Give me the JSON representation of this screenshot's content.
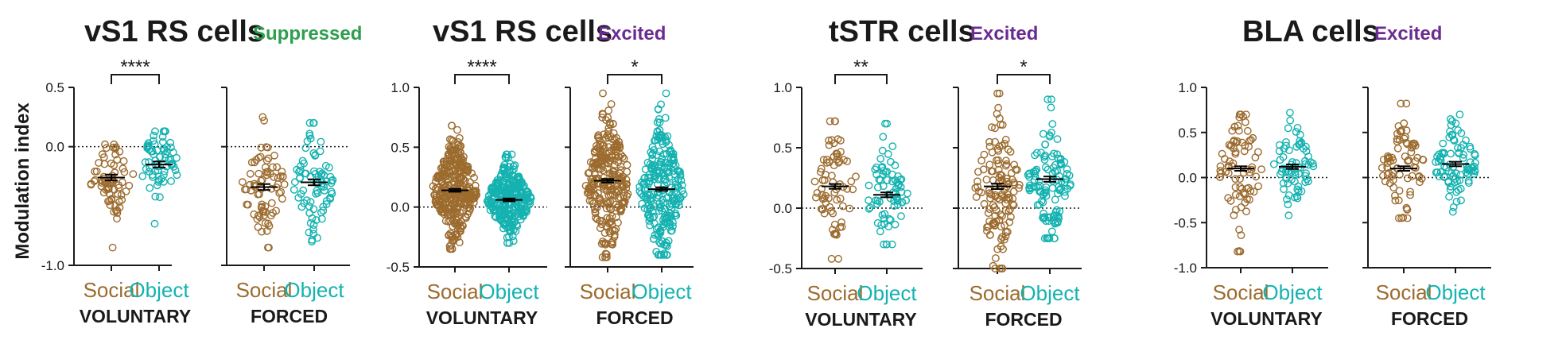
{
  "y_axis_label": "Modulation index",
  "colors": {
    "social": "#9C6B2E",
    "object": "#14B2B0",
    "suppressed": "#2E9E4F",
    "excited": "#6A2C91"
  },
  "chart_data": [
    {
      "title": "vS1 RS cells",
      "status": "Suppressed",
      "status_color": "suppressed",
      "type": "scatter",
      "panels": [
        {
          "condition": "VOLUNTARY",
          "ylim": [
            -1.0,
            0.5
          ],
          "yticks": [
            0.5,
            0.0,
            -1.0
          ],
          "ytick_labels": [
            "0.5",
            "0.0",
            "-1.0"
          ],
          "categories": [
            "Social",
            "Object"
          ],
          "means": [
            -0.26,
            -0.15
          ],
          "sem": 0.025,
          "n": [
            70,
            65
          ],
          "spread": [
            [
              -0.85,
              0.02
            ],
            [
              -0.65,
              0.13
            ]
          ],
          "significance": "****"
        },
        {
          "condition": "FORCED",
          "ylim": [
            -1.0,
            0.5
          ],
          "yticks": [
            0.5,
            0.0,
            -1.0
          ],
          "ytick_labels": [
            "",
            "",
            ""
          ],
          "categories": [
            "Social",
            "Object"
          ],
          "means": [
            -0.34,
            -0.3
          ],
          "sem": 0.025,
          "n": [
            75,
            80
          ],
          "spread": [
            [
              -0.85,
              0.25
            ],
            [
              -0.8,
              0.2
            ]
          ],
          "significance": ""
        }
      ]
    },
    {
      "title": "vS1 RS cells",
      "status": "Excited",
      "status_color": "excited",
      "type": "scatter",
      "panels": [
        {
          "condition": "VOLUNTARY",
          "ylim": [
            -0.5,
            1.0
          ],
          "yticks": [
            1.0,
            0.5,
            0.0,
            -0.5
          ],
          "ytick_labels": [
            "1.0",
            "0.5",
            "0.0",
            "-0.5"
          ],
          "categories": [
            "Social",
            "Object"
          ],
          "means": [
            0.14,
            0.06
          ],
          "sem": 0.012,
          "n": [
            320,
            300
          ],
          "spread": [
            [
              -0.35,
              0.68
            ],
            [
              -0.3,
              0.44
            ]
          ],
          "significance": "****"
        },
        {
          "condition": "FORCED",
          "ylim": [
            -0.5,
            1.0
          ],
          "yticks": [
            1.0,
            0.5,
            0.0,
            -0.5
          ],
          "ytick_labels": [
            "",
            "",
            "",
            ""
          ],
          "categories": [
            "Social",
            "Object"
          ],
          "means": [
            0.22,
            0.15
          ],
          "sem": 0.015,
          "n": [
            260,
            250
          ],
          "spread": [
            [
              -0.42,
              0.95
            ],
            [
              -0.4,
              0.95
            ]
          ],
          "significance": "*"
        }
      ]
    },
    {
      "title": "tSTR cells",
      "status": "Excited",
      "status_color": "excited",
      "type": "scatter",
      "panels": [
        {
          "condition": "VOLUNTARY",
          "ylim": [
            -0.5,
            1.0
          ],
          "yticks": [
            1.0,
            0.5,
            0.0,
            -0.5
          ],
          "ytick_labels": [
            "1.0",
            "0.5",
            "0.0",
            "-0.5"
          ],
          "categories": [
            "Social",
            "Object"
          ],
          "means": [
            0.18,
            0.11
          ],
          "sem": 0.02,
          "n": [
            70,
            75
          ],
          "spread": [
            [
              -0.42,
              0.72
            ],
            [
              -0.3,
              0.7
            ]
          ],
          "significance": "**"
        },
        {
          "condition": "FORCED",
          "ylim": [
            -0.5,
            1.0
          ],
          "yticks": [
            1.0,
            0.5,
            0.0,
            -0.5
          ],
          "ytick_labels": [
            "",
            "",
            "",
            ""
          ],
          "categories": [
            "Social",
            "Object"
          ],
          "means": [
            0.18,
            0.24
          ],
          "sem": 0.022,
          "n": [
            130,
            120
          ],
          "spread": [
            [
              -0.5,
              0.95
            ],
            [
              -0.25,
              0.9
            ]
          ],
          "significance": "*"
        }
      ]
    },
    {
      "title": "BLA cells",
      "status": "Excited",
      "status_color": "excited",
      "type": "scatter",
      "panels": [
        {
          "condition": "VOLUNTARY",
          "ylim": [
            -1.0,
            1.0
          ],
          "yticks": [
            1.0,
            0.5,
            0.0,
            -0.5,
            -1.0
          ],
          "ytick_labels": [
            "1.0",
            "0.5",
            "0.0",
            "-0.5",
            "-1.0"
          ],
          "categories": [
            "Social",
            "Object"
          ],
          "means": [
            0.1,
            0.12
          ],
          "sem": 0.025,
          "n": [
            80,
            70
          ],
          "spread": [
            [
              -0.82,
              0.7
            ],
            [
              -0.42,
              0.72
            ]
          ],
          "significance": ""
        },
        {
          "condition": "FORCED",
          "ylim": [
            -1.0,
            1.0
          ],
          "yticks": [
            1.0,
            0.5,
            0.0,
            -0.5,
            -1.0
          ],
          "ytick_labels": [
            "",
            "",
            "",
            "",
            ""
          ],
          "categories": [
            "Social",
            "Object"
          ],
          "means": [
            0.1,
            0.15
          ],
          "sem": 0.025,
          "n": [
            75,
            85
          ],
          "spread": [
            [
              -0.45,
              0.82
            ],
            [
              -0.38,
              0.7
            ]
          ],
          "significance": ""
        }
      ]
    }
  ]
}
